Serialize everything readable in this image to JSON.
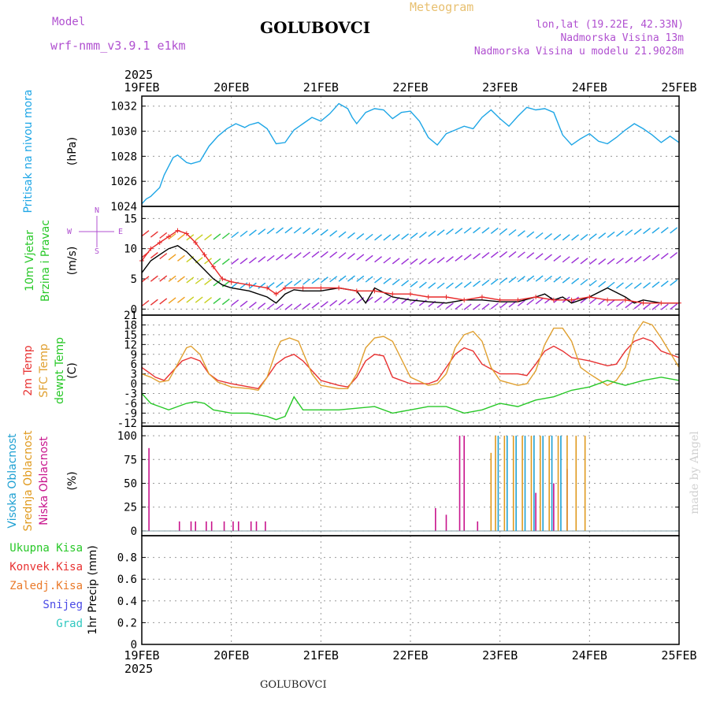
{
  "header": {
    "model_label": "Model",
    "model_name": "wrf-nmm_v3.9.1 e1km",
    "station": "GOLUBOVCI",
    "meteogram_label": "Meteogram",
    "lonlat": "lon,lat (19.22E, 42.33N)",
    "altitude": "Nadmorska Visina 13m",
    "model_altitude": "Nadmorska Visina u modelu 21.9028m"
  },
  "footer": {
    "station": "GOLUBOVCI",
    "credit": "made by Angel"
  },
  "x_axis": {
    "year": "2025",
    "ticks": [
      "19FEB",
      "20FEB",
      "21FEB",
      "22FEB",
      "23FEB",
      "24FEB",
      "25FEB"
    ]
  },
  "colors": {
    "pressure": "#1ea6e6",
    "temp2m": "#e83232",
    "sfc": "#e0a030",
    "dewpt": "#28c828",
    "low": "#c8148c",
    "mid": "#e09a1e",
    "high": "#1ea0d2",
    "wind_line": "#000000",
    "gust": "#e82828",
    "frame": "#000000",
    "grid": "#9a9a9a"
  },
  "chart_data": [
    {
      "id": "pressure",
      "type": "line",
      "label_lines": [
        "Pritisak na nivou mora"
      ],
      "unit": "(hPa)",
      "ylim": [
        1024,
        1032.8
      ],
      "yticks": [
        1024,
        1026,
        1028,
        1030,
        1032
      ],
      "tick_labels": [
        "1024",
        "1026",
        "1028",
        "1030",
        "1032"
      ],
      "xlim": [
        0,
        6
      ],
      "series": [
        {
          "color": "#1ea6e6",
          "x": [
            0,
            0.05,
            0.1,
            0.2,
            0.25,
            0.3,
            0.35,
            0.4,
            0.5,
            0.55,
            0.65,
            0.75,
            0.85,
            0.95,
            1.05,
            1.15,
            1.2,
            1.3,
            1.4,
            1.5,
            1.6,
            1.65,
            1.7,
            1.8,
            1.9,
            2.0,
            2.1,
            2.2,
            2.3,
            2.35,
            2.4,
            2.5,
            2.6,
            2.7,
            2.8,
            2.9,
            3.0,
            3.1,
            3.2,
            3.3,
            3.4,
            3.5,
            3.6,
            3.7,
            3.8,
            3.9,
            4.0,
            4.1,
            4.2,
            4.3,
            4.4,
            4.5,
            4.6,
            4.7,
            4.8,
            4.9,
            5.0,
            5.1,
            5.2,
            5.3,
            5.4,
            5.5,
            5.6,
            5.7,
            5.8,
            5.9,
            6.0
          ],
          "y": [
            1024.2,
            1024.6,
            1024.8,
            1025.5,
            1026.5,
            1027.2,
            1027.9,
            1028.1,
            1027.5,
            1027.4,
            1027.6,
            1028.8,
            1029.6,
            1030.2,
            1030.6,
            1030.3,
            1030.5,
            1030.7,
            1030.2,
            1029.0,
            1029.1,
            1029.6,
            1030.1,
            1030.6,
            1031.1,
            1030.8,
            1031.4,
            1032.2,
            1031.8,
            1031.1,
            1030.6,
            1031.5,
            1031.8,
            1031.7,
            1031.0,
            1031.5,
            1031.6,
            1030.8,
            1029.5,
            1028.9,
            1029.8,
            1030.1,
            1030.4,
            1030.2,
            1031.1,
            1031.7,
            1031.0,
            1030.4,
            1031.2,
            1031.9,
            1031.7,
            1031.8,
            1031.5,
            1029.7,
            1028.9,
            1029.4,
            1029.8,
            1029.2,
            1029.0,
            1029.5,
            1030.1,
            1030.6,
            1030.2,
            1029.7,
            1029.1,
            1029.6,
            1029.1
          ]
        }
      ]
    },
    {
      "id": "wind",
      "type": "line",
      "label_lines": [
        "10m Vjetar",
        "Brzina i Pravac"
      ],
      "unit": "(m/s)",
      "compass": [
        "N",
        "W",
        "E",
        "S"
      ],
      "ylim": [
        -1,
        17
      ],
      "yticks": [
        0,
        5,
        10,
        15
      ],
      "tick_labels": [
        "0",
        "5",
        "10",
        "15"
      ],
      "xlim": [
        0,
        6
      ],
      "series": [
        {
          "name": "wind",
          "color": "#000000",
          "x": [
            0,
            0.1,
            0.2,
            0.3,
            0.4,
            0.5,
            0.6,
            0.7,
            0.8,
            0.9,
            1.0,
            1.2,
            1.4,
            1.5,
            1.6,
            1.7,
            1.8,
            2.0,
            2.2,
            2.4,
            2.5,
            2.6,
            2.8,
            3.0,
            3.2,
            3.4,
            3.6,
            3.8,
            4.0,
            4.2,
            4.4,
            4.5,
            4.6,
            4.7,
            4.8,
            5.0,
            5.2,
            5.4,
            5.5,
            5.6,
            5.8,
            6.0
          ],
          "y": [
            6,
            8,
            9,
            10,
            10.5,
            9.5,
            8,
            6.5,
            5,
            4,
            3.5,
            3,
            2,
            1,
            2.5,
            3.2,
            3,
            3,
            3.5,
            3,
            1,
            3.5,
            2,
            1.5,
            1.2,
            1,
            1.5,
            1.5,
            1.2,
            1.2,
            2,
            2.5,
            1.5,
            2,
            1,
            2,
            3.5,
            2,
            1,
            1.5,
            1,
            1
          ]
        },
        {
          "name": "gust",
          "color": "#e82828",
          "x": [
            0,
            0.1,
            0.2,
            0.3,
            0.4,
            0.5,
            0.6,
            0.7,
            0.8,
            0.9,
            1.0,
            1.2,
            1.4,
            1.5,
            1.6,
            1.8,
            2.0,
            2.2,
            2.4,
            2.6,
            2.8,
            3.0,
            3.2,
            3.4,
            3.6,
            3.8,
            4.0,
            4.2,
            4.4,
            4.6,
            4.8,
            5.0,
            5.2,
            5.4,
            5.6,
            5.8,
            6.0
          ],
          "y": [
            8,
            10,
            11,
            12,
            13,
            12.5,
            11,
            9,
            7,
            5,
            4.5,
            4,
            3.5,
            2.5,
            3.5,
            3.5,
            3.5,
            3.5,
            3,
            3,
            2.5,
            2.5,
            2,
            2,
            1.5,
            2,
            1.5,
            1.5,
            2,
            1.5,
            1.5,
            2,
            1.5,
            1.5,
            1,
            1,
            1
          ]
        }
      ]
    },
    {
      "id": "temperature",
      "type": "line",
      "label_lines": [
        "2m Temp",
        "SFC Temp",
        "dewpt Temp"
      ],
      "unit": "(C)",
      "ylim": [
        -13,
        21
      ],
      "yticks": [
        -12,
        -9,
        -6,
        -3,
        0,
        3,
        6,
        9,
        12,
        15,
        18,
        21
      ],
      "tick_labels": [
        "-12",
        "-9",
        "-6",
        "-3",
        "0",
        "3",
        "6",
        "9",
        "12",
        "15",
        "18",
        "21"
      ],
      "xlim": [
        0,
        6
      ],
      "series": [
        {
          "name": "2m Temp",
          "color": "#e83232",
          "x": [
            0,
            0.1,
            0.15,
            0.25,
            0.35,
            0.45,
            0.55,
            0.65,
            0.75,
            0.85,
            1.0,
            1.2,
            1.3,
            1.4,
            1.5,
            1.6,
            1.7,
            1.8,
            2.0,
            2.2,
            2.3,
            2.4,
            2.5,
            2.6,
            2.7,
            2.8,
            3.0,
            3.2,
            3.3,
            3.4,
            3.5,
            3.6,
            3.7,
            3.8,
            4.0,
            4.2,
            4.3,
            4.4,
            4.5,
            4.6,
            4.7,
            4.8,
            5.0,
            5.2,
            5.3,
            5.4,
            5.5,
            5.6,
            5.7,
            5.8,
            6.0
          ],
          "y": [
            5,
            3,
            2,
            1,
            4,
            7,
            8,
            7,
            3,
            1,
            0,
            -1,
            -1.5,
            2,
            6,
            8,
            9,
            7,
            1,
            -0.5,
            -1,
            2,
            7,
            9,
            8.5,
            2,
            0,
            0,
            1,
            5,
            9,
            11,
            10,
            6,
            3,
            3,
            2.5,
            6,
            10,
            11.5,
            10,
            8,
            7,
            5.5,
            6,
            10,
            13,
            14,
            13,
            10,
            8
          ]
        },
        {
          "name": "SFC Temp",
          "color": "#e0a030",
          "x": [
            0,
            0.1,
            0.2,
            0.3,
            0.4,
            0.5,
            0.55,
            0.65,
            0.75,
            0.85,
            1.0,
            1.2,
            1.3,
            1.4,
            1.5,
            1.55,
            1.65,
            1.75,
            1.9,
            2.0,
            2.2,
            2.3,
            2.4,
            2.5,
            2.6,
            2.7,
            2.8,
            3.0,
            3.2,
            3.3,
            3.4,
            3.5,
            3.6,
            3.7,
            3.8,
            3.9,
            4.0,
            4.2,
            4.3,
            4.4,
            4.5,
            4.6,
            4.7,
            4.8,
            4.9,
            5.0,
            5.2,
            5.3,
            5.4,
            5.5,
            5.6,
            5.7,
            5.8,
            6.0
          ],
          "y": [
            3,
            2,
            0.5,
            1,
            6,
            11,
            11.5,
            9,
            3,
            0.5,
            -1,
            -1.5,
            -2,
            2,
            10,
            13,
            14,
            13,
            3,
            -0.5,
            -1.5,
            -1.5,
            3,
            11,
            14,
            14.5,
            13,
            2,
            -0.5,
            0,
            3,
            11,
            15,
            16,
            13,
            5,
            1,
            -0.5,
            0,
            4,
            12,
            17,
            17,
            13,
            5,
            3,
            -0.5,
            1,
            5,
            15,
            19,
            18,
            14,
            5
          ]
        },
        {
          "name": "dewpt Temp",
          "color": "#28c828",
          "x": [
            0,
            0.1,
            0.2,
            0.3,
            0.4,
            0.5,
            0.6,
            0.7,
            0.8,
            0.9,
            1.0,
            1.2,
            1.4,
            1.5,
            1.6,
            1.7,
            1.8,
            2.0,
            2.2,
            2.4,
            2.6,
            2.8,
            3.0,
            3.2,
            3.4,
            3.6,
            3.8,
            4.0,
            4.2,
            4.4,
            4.6,
            4.8,
            5.0,
            5.2,
            5.4,
            5.6,
            5.8,
            6.0
          ],
          "y": [
            -3,
            -6,
            -7,
            -8,
            -7,
            -6,
            -5.5,
            -6,
            -8,
            -8.5,
            -9,
            -9,
            -10,
            -11,
            -10,
            -4,
            -8,
            -8,
            -8,
            -7.5,
            -7,
            -9,
            -8,
            -7,
            -7,
            -9,
            -8,
            -6,
            -7,
            -5,
            -4,
            -2,
            -1,
            1,
            -0.5,
            1,
            2,
            1
          ]
        }
      ]
    },
    {
      "id": "cloud",
      "type": "bar",
      "label_lines": [
        "Visoka Oblacnost",
        "Srednja Oblacnost",
        "Niska Oblacnost"
      ],
      "unit": "(%)",
      "ylim": [
        -5,
        110
      ],
      "yticks": [
        0,
        25,
        50,
        75,
        100
      ],
      "tick_labels": [
        "0",
        "25",
        "50",
        "75",
        "100"
      ],
      "xlim": [
        0,
        6
      ],
      "series": [
        {
          "name": "Niska",
          "color": "#c8148c",
          "x": [
            0.08,
            0.42,
            0.55,
            0.6,
            0.72,
            0.78,
            0.92,
            1.02,
            1.08,
            1.22,
            1.28,
            1.38,
            3.28,
            3.4,
            3.55,
            3.6,
            3.75,
            4.4,
            4.6,
            4.75
          ],
          "values": [
            87,
            10,
            10,
            10,
            10,
            10,
            10,
            10,
            10,
            10,
            10,
            10,
            24,
            17,
            100,
            100,
            10,
            40,
            50,
            65
          ]
        },
        {
          "name": "Srednja",
          "color": "#e09a1e",
          "x": [
            3.9,
            3.95,
            4.05,
            4.15,
            4.25,
            4.35,
            4.45,
            4.55,
            4.65,
            4.75,
            4.85,
            4.95
          ],
          "values": [
            82,
            100,
            100,
            100,
            100,
            100,
            100,
            100,
            100,
            100,
            100,
            100
          ]
        },
        {
          "name": "Visoka",
          "color": "#1ea0d2",
          "x": [
            3.98,
            4.08,
            4.18,
            4.28,
            4.38,
            4.48,
            4.58,
            4.68
          ],
          "values": [
            100,
            100,
            100,
            100,
            100,
            100,
            100,
            100
          ]
        }
      ]
    },
    {
      "id": "precip",
      "type": "line",
      "label_lines": [
        "Ukupna Kisa",
        "Konvek.Kisa",
        "Zaledj.Kisa",
        "Snijeg",
        "Grad"
      ],
      "label_colors": [
        "#28c828",
        "#e83232",
        "#ea7a2a",
        "#4a4ae6",
        "#30c8c0"
      ],
      "unit": "1hr Precip (mm)",
      "ylim": [
        0,
        1
      ],
      "yticks": [
        0,
        0.2,
        0.4,
        0.6,
        0.8
      ],
      "tick_labels": [
        "0",
        "0.2",
        "0.4",
        "0.6",
        "0.8"
      ],
      "xlim": [
        0,
        6
      ],
      "series": []
    }
  ]
}
